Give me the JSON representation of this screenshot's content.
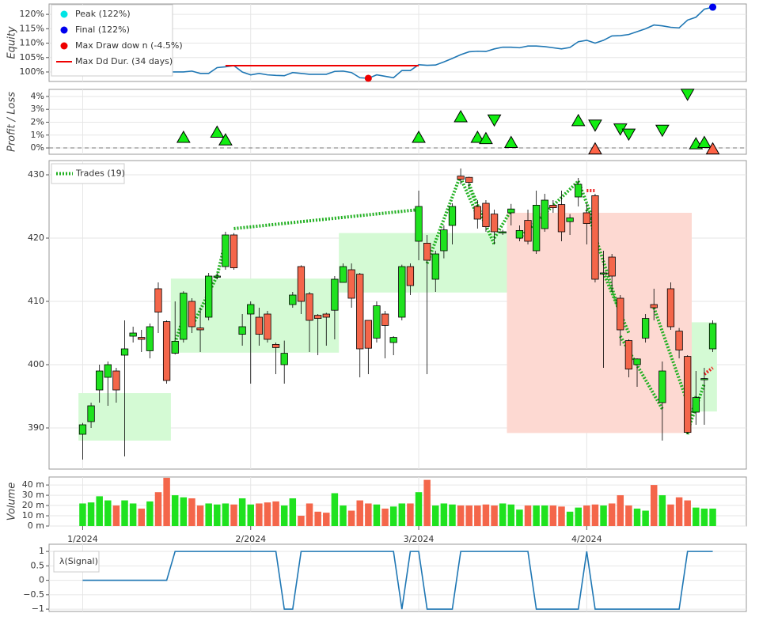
{
  "chart_data": [
    {
      "type": "line",
      "ylabel": "Equity",
      "color": "#1f77b4",
      "ylim": [
        96.7,
        123.6
      ],
      "yticks": [
        {
          "value": 100,
          "label": "100%"
        },
        {
          "value": 105,
          "label": "105%"
        },
        {
          "value": 110,
          "label": "110%"
        },
        {
          "value": 115,
          "label": "115%"
        },
        {
          "value": 120,
          "label": "120%"
        }
      ],
      "values": [
        100,
        100,
        100,
        100,
        100,
        100,
        100,
        100,
        100,
        100,
        100,
        100,
        100,
        100.3,
        99.5,
        99.5,
        101.5,
        101.8,
        102.2,
        100,
        99,
        99.5,
        99,
        98.8,
        98.7,
        99.8,
        99.5,
        99.2,
        99.2,
        99.2,
        100.2,
        100.3,
        99.8,
        98,
        97.8,
        99,
        98.5,
        98,
        100.5,
        100.5,
        102.5,
        102.3,
        102.4,
        103.5,
        104.7,
        106,
        107,
        107.2,
        107.1,
        108,
        108.6,
        108.6,
        108.4,
        109,
        109,
        108.8,
        108.4,
        108,
        108.5,
        110.5,
        111,
        110,
        111,
        112.5,
        112.6,
        113,
        114,
        115,
        116.3,
        116,
        115.5,
        115.3,
        118,
        119,
        121.8,
        122.5
      ],
      "markers": [
        {
          "name": "Peak (122%)",
          "x": 75,
          "y": 122.5,
          "color": "#00e5e5"
        },
        {
          "name": "Final (122%)",
          "x": 75,
          "y": 122.5,
          "color": "#0000ee"
        },
        {
          "name": "Max Draw dow n (-4.5%)",
          "x": 34,
          "y": 97.8,
          "color": "#ee0000"
        }
      ],
      "drawdown_duration": {
        "name": "Max Dd Dur. (34 days)",
        "x": [
          17,
          40
        ],
        "y": 102.2,
        "color": "#ee0000"
      }
    },
    {
      "type": "scatter",
      "ylabel": "Profit / Loss",
      "ylim": [
        -0.49,
        4.55
      ],
      "yticks": [
        {
          "value": 0,
          "label": "0%"
        },
        {
          "value": 1,
          "label": "1%"
        },
        {
          "value": 2,
          "label": "2%"
        },
        {
          "value": 3,
          "label": "3%"
        },
        {
          "value": 4,
          "label": "4%"
        }
      ],
      "x": [
        12,
        16,
        17,
        40,
        45,
        47,
        48,
        49,
        51,
        59,
        61,
        64,
        65,
        69,
        72,
        73,
        74,
        61,
        75
      ],
      "values": [
        0.8,
        1.2,
        0.6,
        0.8,
        2.4,
        0.8,
        0.7,
        2.2,
        0.4,
        2.1,
        1.8,
        1.5,
        1.1,
        1.4,
        4.2,
        0.3,
        0.4,
        -0.1,
        -0.1
      ],
      "direction": [
        "long",
        "long",
        "long",
        "long",
        "long",
        "long",
        "long",
        "short",
        "long",
        "long",
        "short",
        "short",
        "short",
        "short",
        "short",
        "long",
        "long",
        "long",
        "long"
      ],
      "colors": {
        "positive": "#11ee11",
        "negative": "#ff6347"
      }
    },
    {
      "type": "candlestick",
      "ylim": [
        383.5,
        432.25
      ],
      "yticks": [
        390,
        400,
        410,
        420,
        430
      ],
      "colors": {
        "up": "#1fe21f",
        "down": "#f4664a",
        "box_up": "#d4fad4",
        "box_down": "#fdd9d2"
      },
      "open": [
        389,
        391,
        396,
        398,
        399,
        401.5,
        404.5,
        404.3,
        402.2,
        412,
        406.8,
        401.8,
        404,
        410,
        405.8,
        407.5,
        414,
        415.5,
        420.5,
        404.8,
        408,
        407.5,
        408,
        403.2,
        400,
        409.5,
        415.5,
        411.2,
        407.8,
        408,
        408.6,
        413,
        415,
        414.3,
        407,
        404.2,
        408,
        403.5,
        407.5,
        415.5,
        419.5,
        419.2,
        413.5,
        418,
        422,
        429.8,
        429.6,
        425,
        425.5,
        423.8,
        420.9,
        424,
        420,
        422.8,
        418,
        421.5,
        425.2,
        425.3,
        422.6,
        426.5,
        424,
        426.7,
        414.5,
        417,
        410.5,
        403.8,
        400,
        404.2,
        409.5,
        394,
        412,
        405.3,
        401.3,
        392.5,
        397.8,
        402.5
      ],
      "high": [
        390.8,
        394,
        400,
        400.5,
        399.5,
        407,
        406,
        405.5,
        406.5,
        413,
        407,
        410,
        411.6,
        410.5,
        409,
        414.5,
        414.5,
        421,
        420.8,
        408,
        410,
        409,
        408.5,
        403.5,
        403.8,
        411.5,
        415.7,
        411.5,
        408,
        408.2,
        414,
        416,
        416,
        414.5,
        407,
        410,
        408.5,
        404.5,
        415.8,
        416,
        427.5,
        420.5,
        418,
        422,
        425.5,
        431,
        429.7,
        426,
        426,
        424.5,
        421.3,
        425.4,
        422,
        424.5,
        427.5,
        427,
        426,
        427.5,
        423.8,
        429.5,
        425.5,
        427,
        418,
        417.5,
        411,
        404,
        401,
        408,
        412,
        400.5,
        413,
        405.8,
        401.5,
        399,
        399.5,
        407
      ],
      "low": [
        385,
        390,
        394,
        393.5,
        394,
        385.5,
        403.5,
        402,
        401,
        405,
        397,
        401.6,
        403.5,
        405,
        402,
        407,
        413.5,
        415,
        415,
        403,
        397,
        403,
        403.5,
        398.5,
        397,
        409,
        408,
        402,
        401.5,
        403,
        404,
        413,
        409,
        398,
        398.5,
        403.5,
        401,
        401.5,
        407,
        411,
        416.5,
        398.5,
        411.5,
        416.8,
        419,
        428.5,
        428,
        421.5,
        421,
        419,
        420.5,
        422,
        419.5,
        419,
        417.5,
        421,
        424,
        419.5,
        420.5,
        425,
        419,
        413,
        399.5,
        411.5,
        403,
        398,
        396.5,
        403.5,
        407,
        388,
        405.5,
        401,
        389,
        390.5,
        390.5,
        402
      ],
      "close": [
        390.5,
        393.5,
        399,
        400,
        396,
        402.5,
        405,
        404,
        406,
        408.3,
        397.5,
        403.7,
        411.3,
        406,
        405.5,
        414,
        414,
        420.5,
        415.3,
        406,
        409.5,
        404.8,
        404,
        402.7,
        401.8,
        411,
        410,
        407,
        407.3,
        407.5,
        413.5,
        415.5,
        410.5,
        402.5,
        402.6,
        409.3,
        406.2,
        404.3,
        415.5,
        412.5,
        425,
        416.5,
        417.5,
        421.3,
        425,
        429.3,
        428.8,
        423,
        421.8,
        421,
        421,
        424.6,
        421.2,
        419.5,
        425.2,
        426,
        424.8,
        421,
        423.2,
        428.5,
        422.3,
        413.5,
        414.5,
        414,
        405.5,
        399.3,
        400.9,
        407.3,
        409,
        399,
        406,
        402.3,
        389.3,
        394.8,
        397.8,
        406.5
      ],
      "boxes": [
        {
          "start": 0,
          "end": 10,
          "open": 388,
          "close": 395.5
        },
        {
          "start": 11,
          "end": 30,
          "open": 401.9,
          "close": 413.6
        },
        {
          "start": 31,
          "end": 50,
          "open": 411.4,
          "close": 420.8
        },
        {
          "start": 51,
          "end": 72,
          "open": 424,
          "close": 389.2
        },
        {
          "start": 73,
          "end": 75,
          "open": 392.6,
          "close": 406.7
        }
      ],
      "trades": {
        "name": "Trades (19)",
        "color": "#22b022",
        "loss_color": "#ee2222",
        "entry_x": [
          11,
          13,
          16,
          18,
          41,
          45,
          46,
          46,
          49,
          52,
          59,
          60,
          62,
          64,
          68,
          72,
          72,
          60,
          74
        ],
        "entry_price": [
          403.5,
          406,
          414,
          421.5,
          416,
          429.5,
          428.5,
          428,
          420,
          420,
          429,
          424.5,
          414.5,
          404.5,
          409,
          389,
          389.5,
          427.5,
          398.5
        ],
        "exit_x": [
          12,
          16,
          17,
          40,
          45,
          47,
          48,
          49,
          51,
          59,
          61,
          64,
          65,
          69,
          72,
          73,
          74,
          61,
          75
        ],
        "exit_price": [
          407.5,
          414,
          419.5,
          424.5,
          430,
          423.5,
          422,
          419,
          424.4,
          429,
          422,
          408,
          405,
          393,
          394,
          395,
          397,
          427.5,
          399.5
        ]
      }
    },
    {
      "type": "bar",
      "ylabel": "Volume",
      "ylim": [
        0,
        47.8
      ],
      "yticks": [
        {
          "value": 0,
          "label": "0 m"
        },
        {
          "value": 10,
          "label": "10 m"
        },
        {
          "value": 20,
          "label": "20 m"
        },
        {
          "value": 30,
          "label": "30 m"
        },
        {
          "value": 40,
          "label": "40 m"
        }
      ],
      "xlim": [
        -4,
        79
      ],
      "xticks": [
        {
          "value": 0,
          "label": "1/2024"
        },
        {
          "value": 20,
          "label": "2/2024"
        },
        {
          "value": 40,
          "label": "3/2024"
        },
        {
          "value": 60,
          "label": "4/2024"
        }
      ],
      "values": [
        22,
        23,
        29,
        25,
        20,
        25,
        22,
        17,
        24,
        33,
        47,
        30,
        28,
        27,
        20,
        22,
        21,
        22,
        21,
        27,
        21,
        22,
        23,
        24,
        20,
        27,
        10,
        22,
        14,
        13,
        32,
        20,
        15,
        25,
        22,
        21,
        17,
        19,
        22,
        22,
        33,
        45,
        20,
        22,
        21,
        20,
        20,
        20,
        21,
        20,
        22,
        21,
        16,
        20,
        20,
        20,
        20,
        19,
        14,
        18,
        20,
        21,
        20,
        22,
        30,
        20,
        17,
        15,
        40,
        30,
        21,
        28,
        25,
        18,
        17,
        17
      ]
    },
    {
      "type": "line",
      "name": "λ(Signal)",
      "color": "#1f77b4",
      "ylim": [
        -1.08,
        1.25
      ],
      "yticks": [
        {
          "value": -1,
          "label": "−1"
        },
        {
          "value": -0.5,
          "label": "−0.5"
        },
        0,
        0.5,
        1
      ],
      "values": [
        0,
        0,
        0,
        0,
        0,
        0,
        0,
        0,
        0,
        0,
        0,
        1,
        1,
        1,
        1,
        1,
        1,
        1,
        1,
        1,
        1,
        1,
        1,
        1,
        -1,
        -1,
        1,
        1,
        1,
        1,
        1,
        1,
        1,
        1,
        1,
        1,
        1,
        1,
        -1,
        1,
        1,
        -1,
        -1,
        -1,
        -1,
        1,
        1,
        1,
        1,
        1,
        1,
        1,
        1,
        1,
        -1,
        -1,
        -1,
        -1,
        -1,
        -1,
        1,
        -1,
        -1,
        -1,
        -1,
        -1,
        -1,
        -1,
        -1,
        -1,
        -1,
        -1,
        1,
        1,
        1,
        1
      ]
    }
  ]
}
